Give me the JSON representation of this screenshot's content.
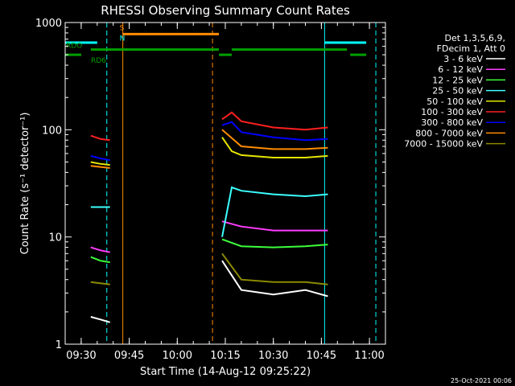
{
  "chart_data": {
    "type": "line",
    "title": "RHESSI Observing Summary Count Rates",
    "xlabel": "Start Time (14-Aug-12 09:25:22)",
    "ylabel": "Count Rate (s⁻¹ detector⁻¹)",
    "y_scale": "log",
    "ylim": [
      1,
      1000
    ],
    "xlim": [
      "09:25",
      "11:05"
    ],
    "x_ticks": [
      "09:30",
      "09:45",
      "10:00",
      "10:15",
      "10:30",
      "10:45",
      "11:00"
    ],
    "y_ticks": [
      "1",
      "10",
      "100",
      "1000"
    ],
    "legend_header": [
      "Det 1,3,5,6,9,",
      "FDecim 1, Att 0"
    ],
    "legend_position": "right",
    "series": [
      {
        "name": "3 - 6 keV",
        "color": "#ffffff",
        "segments": [
          {
            "x": [
              "09:33",
              "09:36",
              "09:39"
            ],
            "y": [
              1.8,
              1.7,
              1.6
            ]
          },
          {
            "x": [
              "10:14",
              "10:20",
              "10:30",
              "10:40",
              "10:47"
            ],
            "y": [
              6.0,
              3.2,
              2.9,
              3.2,
              2.8
            ]
          }
        ]
      },
      {
        "name": "6 - 12 keV",
        "color": "#ff3cff",
        "segments": [
          {
            "x": [
              "09:33",
              "09:36",
              "09:39"
            ],
            "y": [
              8.0,
              7.5,
              7.2
            ]
          },
          {
            "x": [
              "10:14",
              "10:20",
              "10:30",
              "10:40",
              "10:47"
            ],
            "y": [
              14,
              12.5,
              11.5,
              11.5,
              11.5
            ]
          }
        ]
      },
      {
        "name": "12 - 25 keV",
        "color": "#3cff3c",
        "segments": [
          {
            "x": [
              "09:33",
              "09:36",
              "09:39"
            ],
            "y": [
              6.5,
              6.0,
              5.8
            ]
          },
          {
            "x": [
              "10:14",
              "10:20",
              "10:30",
              "10:40",
              "10:47"
            ],
            "y": [
              9.5,
              8.2,
              8.0,
              8.2,
              8.5
            ]
          }
        ]
      },
      {
        "name": "25 - 50 keV",
        "color": "#3cffff",
        "segments": [
          {
            "x": [
              "09:33",
              "09:36",
              "09:39"
            ],
            "y": [
              19,
              19,
              19
            ]
          },
          {
            "x": [
              "10:14",
              "10:17",
              "10:20",
              "10:30",
              "10:40",
              "10:47"
            ],
            "y": [
              10,
              29,
              27,
              25,
              24,
              25
            ]
          }
        ]
      },
      {
        "name": "50 - 100 keV",
        "color": "#e6e600",
        "segments": [
          {
            "x": [
              "09:33",
              "09:36",
              "09:39"
            ],
            "y": [
              50,
              48,
              47
            ]
          },
          {
            "x": [
              "10:14",
              "10:17",
              "10:20",
              "10:30",
              "10:40",
              "10:47"
            ],
            "y": [
              85,
              63,
              58,
              55,
              55,
              57
            ]
          }
        ]
      },
      {
        "name": "100 - 300 keV",
        "color": "#ff2020",
        "segments": [
          {
            "x": [
              "09:33",
              "09:36",
              "09:39"
            ],
            "y": [
              88,
              82,
              80
            ]
          },
          {
            "x": [
              "10:14",
              "10:17",
              "10:20",
              "10:30",
              "10:40",
              "10:47"
            ],
            "y": [
              125,
              145,
              120,
              105,
              100,
              105
            ]
          }
        ]
      },
      {
        "name": "300 - 800 keV",
        "color": "#0000ff",
        "segments": [
          {
            "x": [
              "09:33",
              "09:36",
              "09:39"
            ],
            "y": [
              57,
              54,
              52
            ]
          },
          {
            "x": [
              "10:14",
              "10:17",
              "10:20",
              "10:30",
              "10:40",
              "10:47"
            ],
            "y": [
              110,
              118,
              95,
              85,
              80,
              82
            ]
          }
        ]
      },
      {
        "name": "800 - 7000 keV",
        "color": "#ff8c00",
        "segments": [
          {
            "x": [
              "09:33",
              "09:36",
              "09:39"
            ],
            "y": [
              46,
              45,
              44
            ]
          },
          {
            "x": [
              "10:14",
              "10:20",
              "10:30",
              "10:40",
              "10:47"
            ],
            "y": [
              100,
              70,
              66,
              66,
              68
            ]
          }
        ]
      },
      {
        "name": "7000 - 15000 keV",
        "color": "#8c8a00",
        "segments": [
          {
            "x": [
              "09:33",
              "09:36",
              "09:39"
            ],
            "y": [
              3.8,
              3.7,
              3.6
            ]
          },
          {
            "x": [
              "10:14",
              "10:20",
              "10:30",
              "10:40",
              "10:47"
            ],
            "y": [
              7.0,
              4.0,
              3.8,
              3.8,
              3.6
            ]
          }
        ]
      }
    ],
    "flags": [
      {
        "name": "SAA",
        "label": "",
        "color": "#00ffff",
        "level": 650,
        "intervals": [
          [
            "09:25",
            "09:35"
          ],
          [
            "10:46",
            "10:59"
          ]
        ]
      },
      {
        "name": "Night",
        "label": "",
        "color": "#ff8c00",
        "level": 780,
        "intervals": [
          [
            "09:43",
            "10:13"
          ]
        ]
      },
      {
        "name": "RDO",
        "label": "RDO",
        "color": "#00a000",
        "level": 560,
        "intervals": [
          [
            "09:33",
            "10:13"
          ],
          [
            "10:17",
            "10:53"
          ]
        ]
      },
      {
        "name": "RD6",
        "label": "RD6",
        "color": "#00a000",
        "level": 500,
        "intervals": [
          [
            "09:25",
            "09:30"
          ],
          [
            "10:13",
            "10:17"
          ],
          [
            "10:54",
            "10:59"
          ]
        ]
      }
    ],
    "flag_markers": [
      {
        "text": "S",
        "color": "#ff8c00",
        "x": "09:42",
        "level": 850
      },
      {
        "text": "N",
        "color": "#00ffff",
        "x": "09:42",
        "level": 680
      }
    ],
    "vertical_lines": [
      {
        "x": "09:25",
        "color": "#00ffff",
        "style": "solid"
      },
      {
        "x": "09:38",
        "color": "#00ffff",
        "style": "dashed"
      },
      {
        "x": "09:43",
        "color": "#ff8c00",
        "style": "solid"
      },
      {
        "x": "10:11",
        "color": "#ff8c00",
        "style": "dashed"
      },
      {
        "x": "10:46",
        "color": "#00ffff",
        "style": "solid"
      },
      {
        "x": "11:02",
        "color": "#00ffff",
        "style": "dashed"
      }
    ],
    "footer": "25-Oct-2021 00:06"
  }
}
